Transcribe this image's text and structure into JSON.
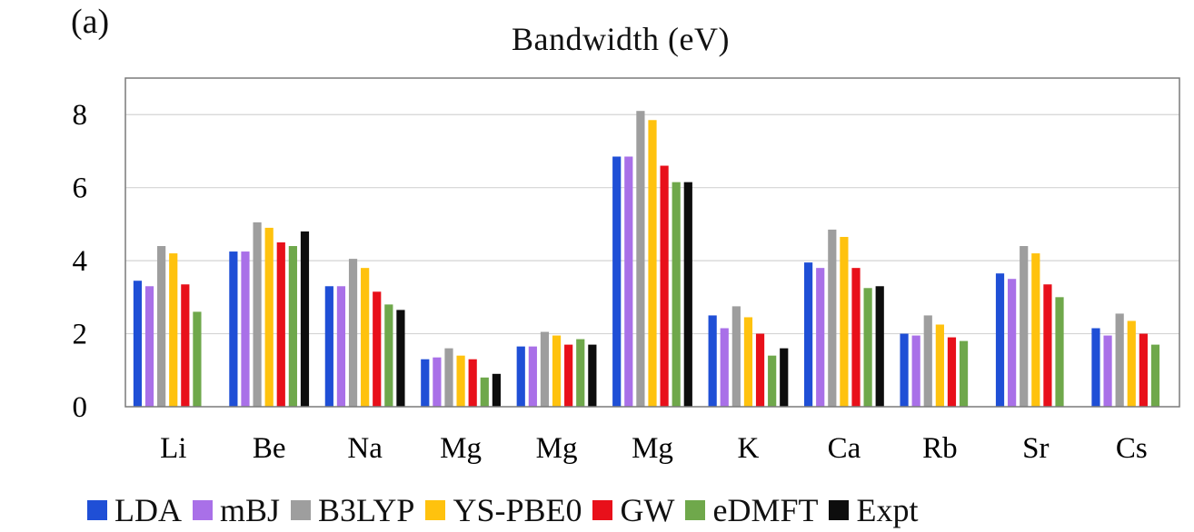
{
  "panel_label": "(a)",
  "chart_data": {
    "type": "bar",
    "title": "Bandwidth (eV)",
    "xlabel": "",
    "ylabel": "",
    "ylim": [
      0,
      9
    ],
    "yticks": [
      0,
      2,
      4,
      6,
      8
    ],
    "grid": true,
    "legend_placement": "bottom",
    "categories": [
      "Li",
      "Be",
      "Na",
      "Mg",
      "Mg",
      "Mg",
      "K",
      "Ca",
      "Rb",
      "Sr",
      "Cs"
    ],
    "series": [
      {
        "name": "LDA",
        "color": "#1f4fd6",
        "values": [
          3.45,
          4.25,
          3.3,
          1.3,
          1.65,
          6.85,
          2.5,
          3.95,
          2.0,
          3.65,
          2.15
        ]
      },
      {
        "name": "mBJ",
        "color": "#a970e8",
        "values": [
          3.3,
          4.25,
          3.3,
          1.35,
          1.65,
          6.85,
          2.15,
          3.8,
          1.95,
          3.5,
          1.95
        ]
      },
      {
        "name": "B3LYP",
        "color": "#9e9e9e",
        "values": [
          4.4,
          5.05,
          4.05,
          1.6,
          2.05,
          8.1,
          2.75,
          4.85,
          2.5,
          4.4,
          2.55
        ]
      },
      {
        "name": "YS-PBE0",
        "color": "#ffc20e",
        "values": [
          4.2,
          4.9,
          3.8,
          1.4,
          1.95,
          7.85,
          2.45,
          4.65,
          2.25,
          4.2,
          2.35
        ]
      },
      {
        "name": "GW",
        "color": "#e8101a",
        "values": [
          3.35,
          4.5,
          3.15,
          1.3,
          1.7,
          6.6,
          2.0,
          3.8,
          1.9,
          3.35,
          2.0
        ]
      },
      {
        "name": "eDMFT",
        "color": "#6fa84b",
        "values": [
          2.6,
          4.4,
          2.8,
          0.8,
          1.85,
          6.15,
          1.4,
          3.25,
          1.8,
          3.0,
          1.7
        ]
      },
      {
        "name": "Expt",
        "color": "#0d0d0d",
        "values": [
          null,
          4.8,
          2.65,
          0.9,
          1.7,
          6.15,
          1.6,
          3.3,
          null,
          null,
          null
        ]
      }
    ]
  }
}
